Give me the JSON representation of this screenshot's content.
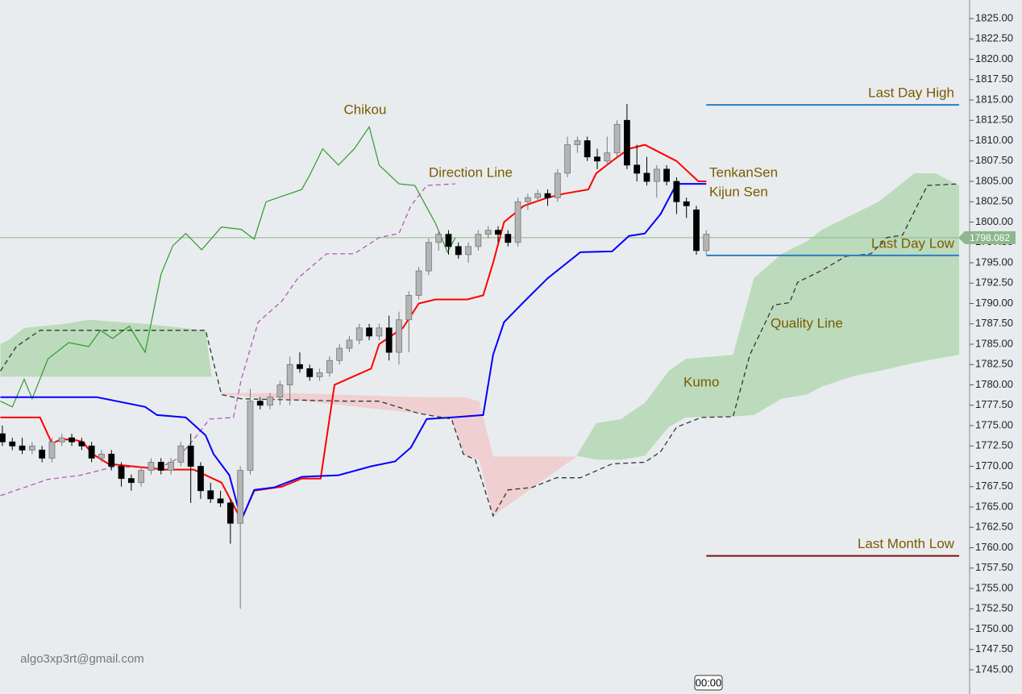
{
  "chart_data": {
    "type": "candlestick",
    "xlim": [
      -0.24,
      97.56
    ],
    "ylim": [
      1742.03,
      1827.28
    ],
    "yticks": [
      {
        "value": 1745,
        "label": "1745.00"
      },
      {
        "value": 1747.5,
        "label": "1747.50"
      },
      {
        "value": 1750,
        "label": "1750.00"
      },
      {
        "value": 1752.5,
        "label": "1752.50"
      },
      {
        "value": 1755,
        "label": "1755.00"
      },
      {
        "value": 1757.5,
        "label": "1757.50"
      },
      {
        "value": 1760,
        "label": "1760.00"
      },
      {
        "value": 1762.5,
        "label": "1762.50"
      },
      {
        "value": 1765,
        "label": "1765.00"
      },
      {
        "value": 1767.5,
        "label": "1767.50"
      },
      {
        "value": 1770,
        "label": "1770.00"
      },
      {
        "value": 1772.5,
        "label": "1772.50"
      },
      {
        "value": 1775,
        "label": "1775.00"
      },
      {
        "value": 1777.5,
        "label": "1777.50"
      },
      {
        "value": 1780,
        "label": "1780.00"
      },
      {
        "value": 1782.5,
        "label": "1782.50"
      },
      {
        "value": 1785,
        "label": "1785.00"
      },
      {
        "value": 1787.5,
        "label": "1787.50"
      },
      {
        "value": 1790,
        "label": "1790.00"
      },
      {
        "value": 1792.5,
        "label": "1792.50"
      },
      {
        "value": 1795,
        "label": "1795.00"
      },
      {
        "value": 1797.5,
        "label": "1797.50"
      },
      {
        "value": 1800,
        "label": "1800.00"
      },
      {
        "value": 1802.5,
        "label": "1802.50"
      },
      {
        "value": 1805,
        "label": "1805.00"
      },
      {
        "value": 1807.5,
        "label": "1807.50"
      },
      {
        "value": 1810,
        "label": "1810.00"
      },
      {
        "value": 1812.5,
        "label": "1812.50"
      },
      {
        "value": 1815,
        "label": "1815.00"
      },
      {
        "value": 1817.5,
        "label": "1817.50"
      },
      {
        "value": 1820,
        "label": "1820.00"
      },
      {
        "value": 1822.5,
        "label": "1822.50"
      },
      {
        "value": 1825,
        "label": "1825.00"
      }
    ],
    "up_color": "#b4b4b4",
    "down_color": "#000000",
    "candles": {
      "open": [
        1774.0,
        1773.0,
        1772.5,
        1772.0,
        1772.0,
        1771.0,
        1773.0,
        1773.5,
        1773.0,
        1772.5,
        1771.0,
        1771.5,
        1770.0,
        1768.5,
        1768.0,
        1769.5,
        1770.5,
        1769.5,
        1770.5,
        1772.5,
        1770.0,
        1767.0,
        1766.0,
        1765.5,
        1763.0,
        1769.5,
        1778.0,
        1777.5,
        1778.5,
        1780.0,
        1782.5,
        1782.0,
        1781.0,
        1781.5,
        1783.0,
        1784.5,
        1785.5,
        1787.0,
        1786.0,
        1787.0,
        1784.0,
        1788.0,
        1791.0,
        1794.0,
        1797.5,
        1798.5,
        1797.0,
        1796.0,
        1797.0,
        1798.5,
        1799.0,
        1798.5,
        1797.5,
        1802.5,
        1803.0,
        1803.5,
        1803.0,
        1806.0,
        1809.5,
        1810.0,
        1808.0,
        1807.5,
        1808.5,
        1812.5,
        1807.0,
        1806.0,
        1805.0,
        1806.5,
        1805.0,
        1802.5,
        1801.5,
        1796.5
      ],
      "high": [
        1775.0,
        1773.5,
        1773.5,
        1773.0,
        1772.5,
        1773.5,
        1774.0,
        1774.0,
        1773.5,
        1773.0,
        1772.0,
        1772.0,
        1770.5,
        1769.0,
        1770.0,
        1771.0,
        1771.0,
        1771.0,
        1773.0,
        1774.0,
        1770.5,
        1768.0,
        1767.0,
        1766.0,
        1770.0,
        1779.5,
        1778.5,
        1779.0,
        1780.5,
        1783.5,
        1784.0,
        1782.5,
        1782.0,
        1783.5,
        1785.0,
        1786.0,
        1787.5,
        1787.5,
        1787.5,
        1788.5,
        1789.0,
        1791.5,
        1794.5,
        1798.0,
        1799.0,
        1799.0,
        1797.5,
        1797.5,
        1799.0,
        1799.5,
        1799.5,
        1799.0,
        1803.0,
        1803.5,
        1804.0,
        1804.0,
        1806.5,
        1810.5,
        1810.5,
        1810.5,
        1809.0,
        1810.5,
        1812.5,
        1814.5,
        1809.5,
        1808.0,
        1807.0,
        1807.0,
        1805.5,
        1803.0,
        1802.0,
        1799.0
      ],
      "low": [
        1772.5,
        1772.0,
        1771.5,
        1771.5,
        1770.5,
        1770.5,
        1772.5,
        1772.5,
        1772.0,
        1770.5,
        1770.5,
        1769.5,
        1767.5,
        1767.0,
        1767.5,
        1769.0,
        1769.0,
        1769.0,
        1770.0,
        1765.5,
        1766.0,
        1765.5,
        1765.0,
        1760.5,
        1752.5,
        1769.0,
        1777.0,
        1777.0,
        1777.5,
        1777.5,
        1781.5,
        1780.5,
        1780.5,
        1781.0,
        1782.5,
        1784.0,
        1785.0,
        1785.5,
        1785.5,
        1783.0,
        1782.5,
        1784.0,
        1790.5,
        1793.5,
        1796.5,
        1796.0,
        1795.5,
        1795.0,
        1796.5,
        1798.0,
        1797.5,
        1797.0,
        1797.0,
        1801.5,
        1802.5,
        1802.0,
        1802.5,
        1805.5,
        1808.5,
        1807.5,
        1806.5,
        1807.0,
        1808.0,
        1806.5,
        1805.0,
        1804.5,
        1803.0,
        1804.5,
        1801.0,
        1800.5,
        1796.0,
        1796.0
      ],
      "close": [
        1773.0,
        1772.5,
        1772.0,
        1772.5,
        1771.0,
        1773.0,
        1773.5,
        1773.0,
        1772.5,
        1771.0,
        1771.5,
        1770.0,
        1768.5,
        1768.0,
        1769.5,
        1770.5,
        1769.5,
        1770.5,
        1772.5,
        1770.0,
        1767.0,
        1766.0,
        1765.5,
        1763.0,
        1769.5,
        1778.0,
        1777.5,
        1778.5,
        1780.0,
        1782.5,
        1782.0,
        1781.0,
        1781.5,
        1783.0,
        1784.5,
        1785.5,
        1787.0,
        1786.0,
        1787.0,
        1784.0,
        1788.0,
        1791.0,
        1794.0,
        1797.5,
        1798.5,
        1797.0,
        1796.0,
        1797.0,
        1798.5,
        1799.0,
        1798.5,
        1797.5,
        1802.5,
        1803.0,
        1803.5,
        1803.0,
        1806.0,
        1809.5,
        1810.0,
        1808.0,
        1807.5,
        1808.5,
        1812.0,
        1807.0,
        1806.0,
        1805.0,
        1806.5,
        1805.0,
        1802.5,
        1802.0,
        1796.5,
        1798.5
      ]
    },
    "lines": [
      {
        "name": "Chikou",
        "color": "#2e9a2e",
        "dash": false,
        "x": [
          -0.2,
          1.0,
          2.2,
          3.0,
          4.6,
          6.7,
          8.7,
          9.9,
          11.1,
          12.8,
          14.4,
          16.0,
          17.2,
          18.5,
          20.1,
          22.1,
          24.1,
          25.4,
          26.6,
          27.8,
          29.0,
          30.2,
          31.1,
          32.3,
          33.9,
          35.5,
          37.0,
          38.0,
          40.0,
          41.6,
          43.7,
          44.9,
          45.7
        ],
        "values": [
          1778.0,
          1777.3,
          1780.7,
          1778.3,
          1783.2,
          1785.2,
          1784.7,
          1786.7,
          1785.7,
          1787.2,
          1784.0,
          1793.6,
          1797.1,
          1798.6,
          1796.6,
          1799.4,
          1799.1,
          1797.9,
          1802.5,
          1803.0,
          1803.5,
          1804.0,
          1806.0,
          1809.0,
          1807.0,
          1809.0,
          1811.7,
          1807.0,
          1804.7,
          1804.5,
          1799.8,
          1796.3,
          1798.1
        ]
      },
      {
        "name": "Direction Line",
        "color": "#b25ab2",
        "dash": true,
        "x": [
          -0.2,
          4.6,
          7.9,
          11.1,
          16.0,
          17.6,
          19.3,
          20.9,
          23.3,
          24.1,
          25.8,
          28.2,
          29.8,
          32.7,
          35.5,
          38.0,
          40.0,
          41.2,
          42.8,
          45.7
        ],
        "values": [
          1766.4,
          1768.4,
          1768.9,
          1769.9,
          1769.9,
          1770.9,
          1773.3,
          1775.8,
          1776.0,
          1780.7,
          1787.7,
          1790.3,
          1793.1,
          1796.1,
          1796.1,
          1798.1,
          1798.6,
          1802.0,
          1804.5,
          1804.7
        ]
      },
      {
        "name": "TenkanSen",
        "color": "#ff0000",
        "dash": false,
        "x": [
          -0.2,
          3.8,
          5.0,
          5.9,
          7.1,
          8.1,
          9.1,
          10.7,
          16.4,
          19.3,
          22.1,
          24.1,
          25.4,
          28.2,
          30.2,
          32.1,
          33.5,
          37.2,
          38.0,
          40.4,
          42.0,
          43.7,
          46.9,
          48.5,
          49.5,
          50.6,
          52.6,
          55.0,
          56.7,
          59.1,
          59.9,
          61.5,
          63.2,
          64.8,
          66.4,
          68.0,
          70.2,
          71.0
        ],
        "values": [
          1776,
          1776,
          1772.8,
          1773.3,
          1773.3,
          1773,
          1771.5,
          1770.3,
          1769.6,
          1769.6,
          1768,
          1763.4,
          1767,
          1767.5,
          1768.5,
          1768.5,
          1780,
          1782,
          1785,
          1787,
          1790,
          1790.5,
          1790.5,
          1791,
          1795,
          1800,
          1802,
          1803,
          1803.5,
          1804,
          1806,
          1807.5,
          1809,
          1809.5,
          1808.5,
          1807.5,
          1805,
          1805
        ]
      },
      {
        "name": "Kijun Sen",
        "color": "#0000ff",
        "dash": false,
        "x": [
          -0.2,
          9.5,
          14.4,
          15.6,
          18.5,
          20.5,
          21.3,
          22.9,
          24.1,
          25.4,
          27.4,
          30.2,
          33.9,
          37.2,
          39.6,
          41.2,
          42.8,
          45.3,
          48.5,
          49.5,
          50.6,
          52.6,
          55.0,
          58.3,
          61.5,
          63.2,
          64.8,
          66.4,
          68.0,
          71.0
        ],
        "values": [
          1778.5,
          1778.5,
          1777.3,
          1776.3,
          1776,
          1773.8,
          1771.5,
          1768.9,
          1763.4,
          1767.1,
          1767.4,
          1768.7,
          1768.9,
          1770,
          1770.6,
          1772.3,
          1775.8,
          1776,
          1776.3,
          1783.7,
          1787.7,
          1790.2,
          1793.1,
          1796.3,
          1796.4,
          1798.3,
          1798.6,
          1801,
          1804.7,
          1804.7
        ]
      },
      {
        "name": "Quality Line",
        "color": "#333333",
        "dash": true,
        "x": [
          -0.2,
          1.4,
          3.8,
          20.5,
          22.1,
          24.1,
          34.7,
          38.0,
          42.0,
          45.3,
          46.5,
          47.7,
          49.5,
          51.0,
          53.4,
          55.9,
          58.3,
          61.5,
          64.8,
          66.4,
          68.0,
          70.5,
          73.7,
          75.4,
          77.8,
          79.4,
          80.2,
          82.7,
          85.1,
          87.6,
          89.2,
          90.8,
          93.3,
          96.5
        ],
        "values": [
          1781.7,
          1784.7,
          1786.7,
          1786.7,
          1778.8,
          1778.3,
          1778,
          1778,
          1776.5,
          1775.8,
          1771.5,
          1770.8,
          1763.9,
          1767.1,
          1767.4,
          1768.6,
          1768.6,
          1770.3,
          1770.5,
          1771.8,
          1774.8,
          1776,
          1776.1,
          1783.7,
          1789.8,
          1790.1,
          1792.6,
          1794.1,
          1795.8,
          1796.1,
          1798.1,
          1798.4,
          1804.5,
          1804.7
        ]
      }
    ],
    "kumo": [
      {
        "color": "#bcdbbc",
        "x": [
          -0.2,
          0.6,
          2.2,
          6.3,
          8.7,
          14.4,
          20.5,
          21.1
        ],
        "upper": [
          1785,
          1785.5,
          1787,
          1787.5,
          1788,
          1787.5,
          1786.7,
          1781
        ],
        "lower": [
          1781,
          1781,
          1781,
          1781,
          1781,
          1781,
          1781,
          1781
        ]
      },
      {
        "color": "#f0cfd0",
        "x": [
          22.1,
          29.0,
          42.0,
          45.3,
          46.5,
          48.1,
          49.5,
          57.9
        ],
        "upper": [
          1779,
          1779,
          1778.5,
          1778.5,
          1778.5,
          1778,
          1771.2,
          1771.2
        ],
        "lower": [
          1778.8,
          1778.2,
          1776.5,
          1775.8,
          1771.5,
          1770.8,
          1763.9,
          1771.2
        ]
      },
      {
        "name": "Kumo",
        "color": "#bcdbbc",
        "x": [
          57.9,
          59.9,
          62.4,
          64.8,
          67.2,
          68.9,
          73.7,
          75.8,
          78.6,
          81.1,
          82.7,
          85.9,
          88.4,
          92.0,
          94.1,
          96.5
        ],
        "upper": [
          1771.3,
          1775.3,
          1775.8,
          1777.8,
          1781.7,
          1783.2,
          1783.7,
          1793.1,
          1796.1,
          1797.6,
          1799.1,
          1801.0,
          1802.5,
          1806.0,
          1806.0,
          1804.5
        ],
        "lower": [
          1771.3,
          1770.8,
          1770.8,
          1771.3,
          1774.8,
          1776.0,
          1776.1,
          1776.3,
          1778.3,
          1778.8,
          1779.8,
          1781.1,
          1781.7,
          1782.7,
          1783.2,
          1783.7
        ]
      }
    ],
    "levels": [
      {
        "label": "Last Day High",
        "value": 1814.4,
        "color": "#2a7fc4",
        "x": [
          71.0,
          96.5
        ]
      },
      {
        "label": "Last Day Low",
        "value": 1795.9,
        "color": "#2a7fc4",
        "x": [
          71.0,
          96.5
        ]
      },
      {
        "label": "Last Month Low",
        "value": 1759,
        "color": "#7a1010",
        "x": [
          71.0,
          96.5
        ]
      }
    ],
    "last_price": {
      "value": 1798.082,
      "label": "1798.082",
      "color": "#8db88d"
    },
    "watermark": "algo3xp3rt@gmail.com",
    "time_label": "00:00"
  }
}
